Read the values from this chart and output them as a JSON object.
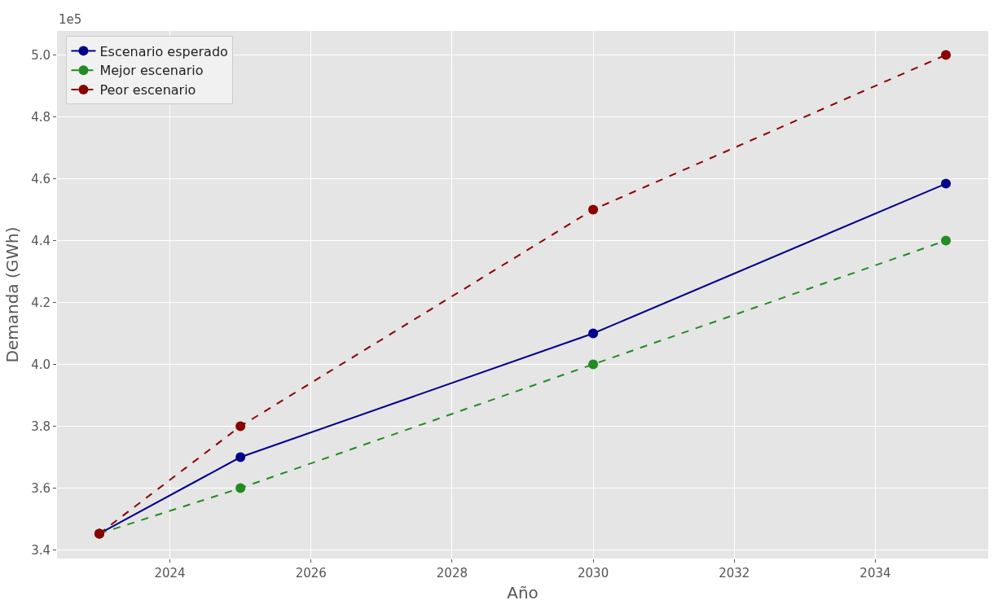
{
  "chart_data": {
    "type": "line",
    "xlabel": "Año",
    "ylabel": "Demanda (GWh)",
    "x": [
      2023,
      2025,
      2030,
      2035
    ],
    "series": [
      {
        "name": "Escenario esperado",
        "color": "#00008b",
        "values": [
          3.453,
          3.7,
          4.1,
          4.584
        ],
        "line_style": "solid"
      },
      {
        "name": "Mejor escenario",
        "color": "#228b22",
        "values": [
          3.453,
          3.6,
          4.0,
          4.4
        ],
        "line_style": "dashed"
      },
      {
        "name": "Peor escenario",
        "color": "#8b0000",
        "values": [
          3.453,
          3.8,
          4.5,
          5.0
        ],
        "line_style": "dashed"
      }
    ],
    "xlim": [
      2022.4,
      2035.6
    ],
    "xticks": [
      2024,
      2026,
      2028,
      2030,
      2032,
      2034
    ],
    "ylim": [
      3.3725,
      5.0775
    ],
    "yticks": [
      {
        "value": 3.4,
        "label": "3.4"
      },
      {
        "value": 3.6,
        "label": "3.6"
      },
      {
        "value": 3.8,
        "label": "3.8"
      },
      {
        "value": 4.0,
        "label": "4.0"
      },
      {
        "value": 4.2,
        "label": "4.2"
      },
      {
        "value": 4.4,
        "label": "4.4"
      },
      {
        "value": 4.6,
        "label": "4.6"
      },
      {
        "value": 4.8,
        "label": "4.8"
      },
      {
        "value": 5.0,
        "label": "5.0"
      }
    ],
    "annotations": [
      "1e5"
    ],
    "grid": true,
    "legend": "top left",
    "marker": "circle"
  }
}
